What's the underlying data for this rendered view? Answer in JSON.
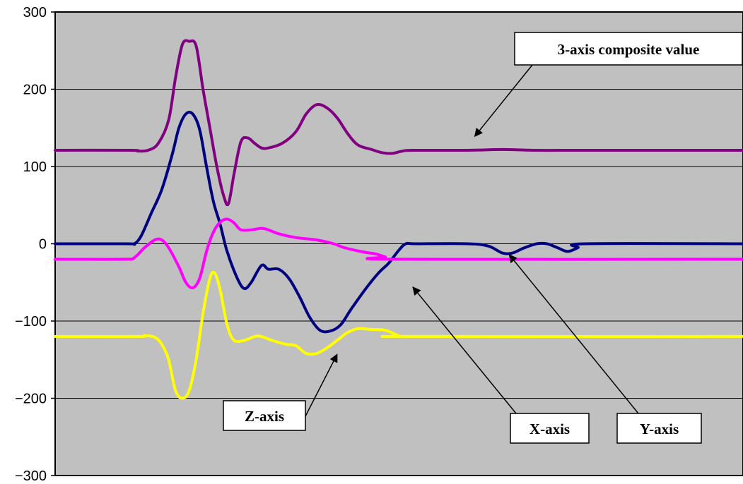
{
  "chart_data": {
    "type": "line",
    "ylim": [
      -300,
      300
    ],
    "yticks": [
      300,
      200,
      100,
      0,
      -100,
      -200,
      -300
    ],
    "ytick_labels": [
      "300",
      "200",
      "100",
      "0",
      "−100",
      "−200",
      "−300"
    ],
    "xlim": [
      0,
      100
    ],
    "grid": true,
    "background": "#c0c0c0",
    "series": [
      {
        "name": "3-axis composite value",
        "color": "#800080",
        "points": [
          [
            0,
            121
          ],
          [
            11,
            121
          ],
          [
            12,
            120
          ],
          [
            13.5,
            121
          ],
          [
            15,
            130
          ],
          [
            16.5,
            160
          ],
          [
            17.5,
            215
          ],
          [
            18.5,
            258
          ],
          [
            19.5,
            262
          ],
          [
            20.5,
            256
          ],
          [
            21.5,
            200
          ],
          [
            22.5,
            150
          ],
          [
            23.5,
            100
          ],
          [
            24.5,
            62
          ],
          [
            25.2,
            52
          ],
          [
            26,
            90
          ],
          [
            27,
            132
          ],
          [
            28,
            137
          ],
          [
            29,
            130
          ],
          [
            30,
            124
          ],
          [
            31,
            124
          ],
          [
            33,
            130
          ],
          [
            35,
            145
          ],
          [
            36.5,
            168
          ],
          [
            38,
            180
          ],
          [
            39.5,
            176
          ],
          [
            41,
            163
          ],
          [
            42.5,
            143
          ],
          [
            44,
            128
          ],
          [
            46,
            122
          ],
          [
            47.5,
            118
          ],
          [
            49,
            117
          ],
          [
            50.5,
            120
          ],
          [
            52,
            121
          ],
          [
            60,
            121
          ],
          [
            65,
            122
          ],
          [
            70,
            121
          ],
          [
            75,
            121
          ],
          [
            80,
            121
          ],
          [
            85,
            121
          ],
          [
            90,
            121
          ],
          [
            100,
            121
          ]
        ]
      },
      {
        "name": "X-axis",
        "color": "#000080",
        "points": [
          [
            0,
            0
          ],
          [
            10.5,
            0
          ],
          [
            11.5,
            0
          ],
          [
            12.5,
            10
          ],
          [
            14,
            40
          ],
          [
            15.5,
            70
          ],
          [
            17,
            115
          ],
          [
            18,
            150
          ],
          [
            19,
            168
          ],
          [
            20,
            168
          ],
          [
            21,
            148
          ],
          [
            22,
            100
          ],
          [
            23,
            55
          ],
          [
            24,
            25
          ],
          [
            25,
            -10
          ],
          [
            26.5,
            -45
          ],
          [
            27.5,
            -58
          ],
          [
            28.5,
            -50
          ],
          [
            30,
            -28
          ],
          [
            31,
            -33
          ],
          [
            32.5,
            -33
          ],
          [
            34,
            -45
          ],
          [
            35.5,
            -68
          ],
          [
            37,
            -95
          ],
          [
            38.5,
            -112
          ],
          [
            40,
            -113
          ],
          [
            41.5,
            -105
          ],
          [
            43,
            -85
          ],
          [
            45,
            -60
          ],
          [
            47,
            -38
          ],
          [
            48.5,
            -25
          ],
          [
            50,
            -8
          ],
          [
            51,
            0
          ],
          [
            52.5,
            0
          ],
          [
            60,
            0
          ],
          [
            63,
            -3
          ],
          [
            65,
            -12
          ],
          [
            66.5,
            -12
          ],
          [
            68,
            -6
          ],
          [
            70,
            0
          ],
          [
            71.5,
            0
          ],
          [
            73,
            -5
          ],
          [
            74.5,
            -10
          ],
          [
            76,
            -5
          ],
          [
            77,
            0
          ],
          [
            100,
            0
          ]
        ]
      },
      {
        "name": "Y-axis",
        "color": "#ff00ff",
        "points": [
          [
            0,
            -20
          ],
          [
            10,
            -20
          ],
          [
            11.5,
            -18
          ],
          [
            13,
            -5
          ],
          [
            14.5,
            5
          ],
          [
            15.5,
            5
          ],
          [
            16.5,
            -5
          ],
          [
            18,
            -30
          ],
          [
            19,
            -50
          ],
          [
            20,
            -57
          ],
          [
            21,
            -45
          ],
          [
            22,
            -10
          ],
          [
            23,
            15
          ],
          [
            24,
            28
          ],
          [
            25,
            32
          ],
          [
            26,
            27
          ],
          [
            27,
            18
          ],
          [
            28.5,
            18
          ],
          [
            30,
            20
          ],
          [
            31,
            18
          ],
          [
            32.5,
            13
          ],
          [
            35,
            8
          ],
          [
            38,
            5
          ],
          [
            40.5,
            0
          ],
          [
            42,
            -5
          ],
          [
            45,
            -11
          ],
          [
            46.5,
            -13
          ],
          [
            48,
            -17
          ],
          [
            49.5,
            -20
          ],
          [
            100,
            -20
          ]
        ]
      },
      {
        "name": "Z-axis",
        "color": "#ffff00",
        "points": [
          [
            0,
            -120
          ],
          [
            12,
            -120
          ],
          [
            13,
            -119
          ],
          [
            14.5,
            -121
          ],
          [
            15.5,
            -130
          ],
          [
            16.5,
            -150
          ],
          [
            17.5,
            -190
          ],
          [
            18.5,
            -200
          ],
          [
            19.5,
            -190
          ],
          [
            20.5,
            -150
          ],
          [
            21.5,
            -90
          ],
          [
            22.5,
            -45
          ],
          [
            23.2,
            -38
          ],
          [
            24,
            -60
          ],
          [
            25,
            -105
          ],
          [
            26,
            -125
          ],
          [
            27.5,
            -125
          ],
          [
            29,
            -120
          ],
          [
            30,
            -120
          ],
          [
            31.5,
            -125
          ],
          [
            33.5,
            -130
          ],
          [
            35,
            -132
          ],
          [
            36.5,
            -142
          ],
          [
            38,
            -142
          ],
          [
            39.5,
            -135
          ],
          [
            41,
            -125
          ],
          [
            42.5,
            -115
          ],
          [
            44,
            -110
          ],
          [
            46,
            -111
          ],
          [
            48,
            -112
          ],
          [
            50,
            -119
          ],
          [
            51.5,
            -120
          ],
          [
            100,
            -120
          ]
        ]
      }
    ],
    "annotations": [
      {
        "text": "3-axis composite value",
        "target_series": "3-axis composite value",
        "points_to": [
          61,
          139
        ]
      },
      {
        "text": "X-axis",
        "target_series": "X-axis",
        "points_to": [
          52,
          -56
        ]
      },
      {
        "text": "Y-axis",
        "target_series": "Y-axis",
        "points_to": [
          66,
          -14
        ]
      },
      {
        "text": "Z-axis",
        "target_series": "Z-axis",
        "points_to": [
          41,
          -143
        ]
      }
    ]
  }
}
